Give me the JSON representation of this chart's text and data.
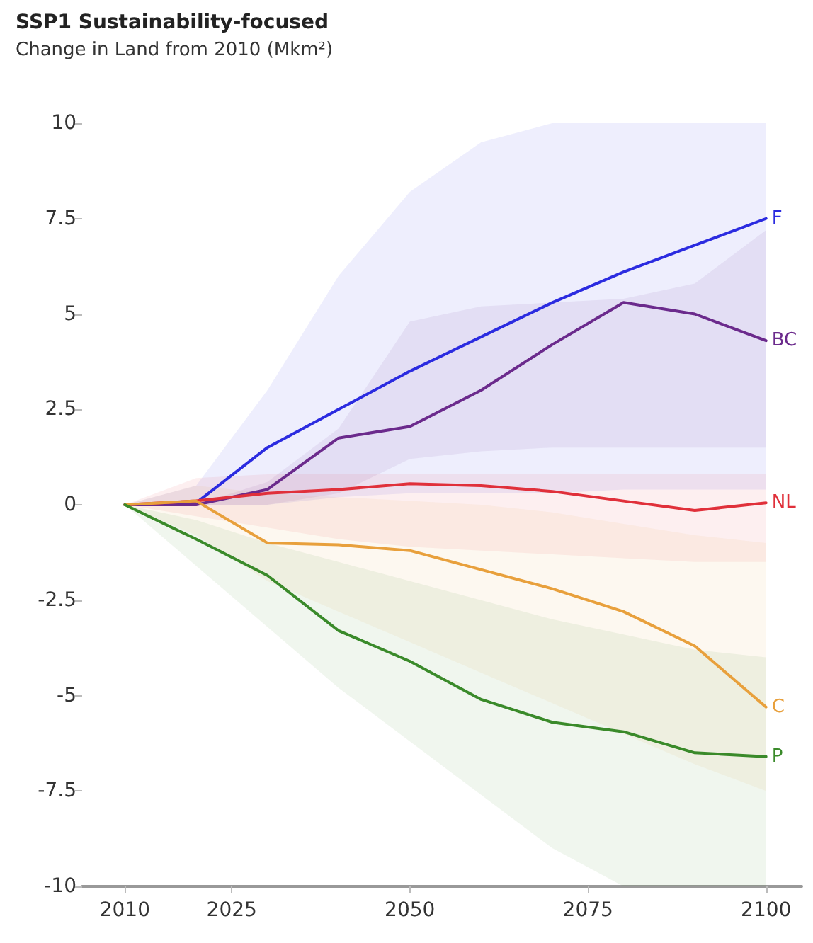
{
  "chart_data": {
    "type": "line",
    "title": "SSP1 Sustainability-focused",
    "subtitle": "Change in Land from 2010 (Mkm²)",
    "x": [
      2010,
      2020,
      2030,
      2040,
      2050,
      2060,
      2070,
      2080,
      2090,
      2100
    ],
    "series": [
      {
        "name": "F",
        "color": "#2b2be0",
        "values": [
          0,
          0.05,
          1.5,
          2.5,
          3.5,
          4.4,
          5.3,
          6.1,
          6.8,
          7.5
        ],
        "lower": [
          0,
          0,
          0,
          0.2,
          0.3,
          0.3,
          0.3,
          0.4,
          0.4,
          0.4
        ],
        "upper": [
          0,
          0.5,
          3,
          6,
          8.2,
          9.5,
          10,
          10,
          10,
          10
        ]
      },
      {
        "name": "BC",
        "color": "#6b2a8c",
        "values": [
          0,
          0,
          0.4,
          1.75,
          2.05,
          3,
          4.2,
          5.3,
          5,
          4.3
        ],
        "lower": [
          0,
          0,
          0,
          0.3,
          1.2,
          1.4,
          1.5,
          1.5,
          1.5,
          1.5
        ],
        "upper": [
          0,
          0,
          0.6,
          2,
          4.8,
          5.2,
          5.3,
          5.4,
          5.8,
          7.2
        ]
      },
      {
        "name": "NL",
        "color": "#e0303a",
        "values": [
          0,
          0.1,
          0.3,
          0.4,
          0.55,
          0.5,
          0.35,
          0.1,
          -0.15,
          0.05
        ],
        "lower": [
          0,
          -0.3,
          -0.6,
          -0.9,
          -1.1,
          -1.2,
          -1.3,
          -1.4,
          -1.5,
          -1.5
        ],
        "upper": [
          0,
          0.7,
          0.8,
          0.8,
          0.8,
          0.8,
          0.8,
          0.8,
          0.8,
          0.8
        ]
      },
      {
        "name": "C",
        "color": "#e8a03c",
        "values": [
          0,
          0.1,
          -1,
          -1.05,
          -1.2,
          -1.7,
          -2.2,
          -2.8,
          -3.7,
          -5.3
        ],
        "lower": [
          0,
          -0.8,
          -2,
          -2.8,
          -3.6,
          -4.4,
          -5.2,
          -6,
          -6.8,
          -7.5
        ],
        "upper": [
          0,
          0.5,
          0.3,
          0.2,
          0.1,
          0,
          -0.2,
          -0.5,
          -0.8,
          -1
        ]
      },
      {
        "name": "P",
        "color": "#3a8a2a",
        "values": [
          0,
          -0.9,
          -1.85,
          -3.3,
          -4.1,
          -5.1,
          -5.7,
          -5.95,
          -6.5,
          -6.6
        ],
        "lower": [
          0,
          -1.6,
          -3.2,
          -4.8,
          -6.2,
          -7.6,
          -9,
          -10,
          -10,
          -10
        ],
        "upper": [
          0,
          -0.4,
          -1,
          -1.5,
          -2,
          -2.5,
          -3,
          -3.4,
          -3.8,
          -4
        ]
      }
    ],
    "xlim": [
      2004,
      2105
    ],
    "xticks": [
      2010,
      2025,
      2050,
      2075,
      2100
    ],
    "ylim": [
      -10,
      10
    ],
    "yticks": [
      -10,
      -7.5,
      -5,
      -2.5,
      0,
      2.5,
      5,
      7.5,
      10
    ],
    "grid": false,
    "legend": false,
    "marker": "none",
    "line_style": "solid"
  }
}
